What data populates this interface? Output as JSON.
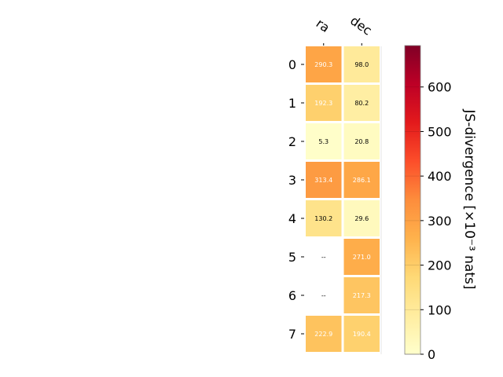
{
  "chart_data": {
    "type": "heatmap",
    "columns": [
      "ra",
      "dec"
    ],
    "rows": [
      "0",
      "1",
      "2",
      "3",
      "4",
      "5",
      "6",
      "7"
    ],
    "values": [
      [
        290.3,
        98.0
      ],
      [
        192.3,
        80.2
      ],
      [
        5.3,
        20.8
      ],
      [
        313.4,
        286.1
      ],
      [
        130.2,
        29.6
      ],
      [
        null,
        271.0
      ],
      [
        null,
        217.3
      ],
      [
        222.9,
        190.4
      ]
    ],
    "cell_labels": [
      [
        "290.3",
        "98.0"
      ],
      [
        "192.3",
        "80.2"
      ],
      [
        "5.3",
        "20.8"
      ],
      [
        "313.4",
        "286.1"
      ],
      [
        "130.2",
        "29.6"
      ],
      [
        "--",
        "271.0"
      ],
      [
        "--",
        "217.3"
      ],
      [
        "222.9",
        "190.4"
      ]
    ],
    "missing_label": "--",
    "colormap": "YlOrRd",
    "colorbar": {
      "label": "JS-divergence [×10⁻³ nats]",
      "range": [
        0,
        693
      ],
      "ticks": [
        0,
        100,
        200,
        300,
        400,
        500,
        600
      ]
    }
  }
}
